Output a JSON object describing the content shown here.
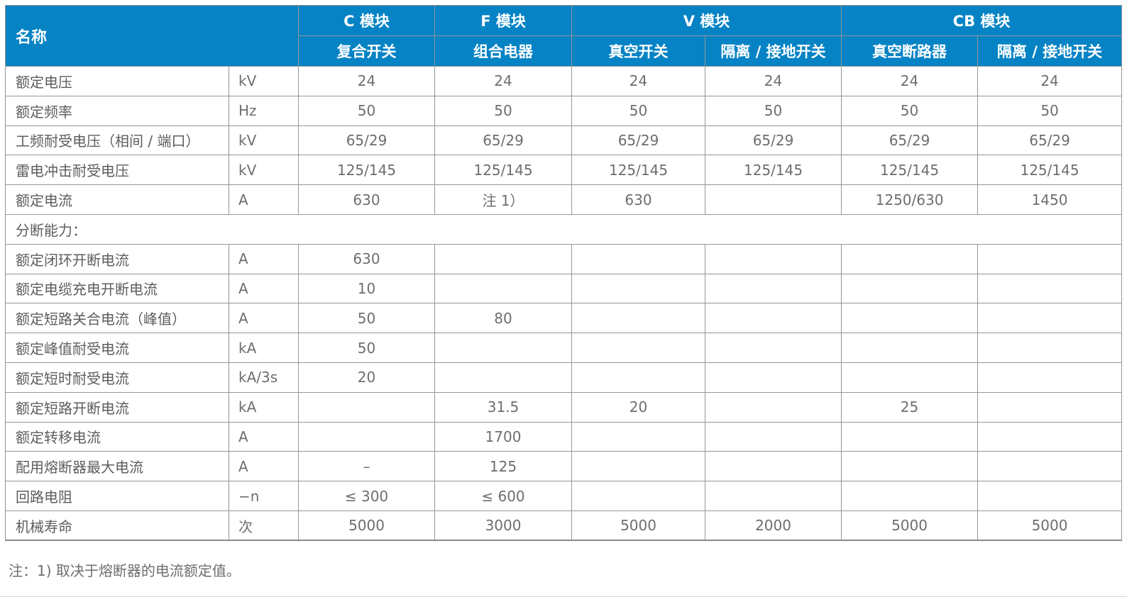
{
  "accent": {
    "header_bg": "#0583c5",
    "header_text": "#ffffff",
    "grid_line": "#969696",
    "body_text": "#6e6e6e"
  },
  "table": {
    "name_header": "名称",
    "groups": [
      {
        "label": "C 模块",
        "subs": [
          "复合开关"
        ]
      },
      {
        "label": "F 模块",
        "subs": [
          "组合电器"
        ]
      },
      {
        "label": "V 模块",
        "subs": [
          "真空开关",
          "隔离 / 接地开关"
        ]
      },
      {
        "label": "CB 模块",
        "subs": [
          "真空断路器",
          "隔离 / 接地开关"
        ]
      }
    ],
    "rows": [
      {
        "type": "data",
        "name": "额定电压",
        "unit": "kV",
        "values": [
          "24",
          "24",
          "24",
          "24",
          "24",
          "24"
        ]
      },
      {
        "type": "data",
        "name": "额定频率",
        "unit": "Hz",
        "values": [
          "50",
          "50",
          "50",
          "50",
          "50",
          "50"
        ]
      },
      {
        "type": "data",
        "name": "工频耐受电压（相间 / 端口）",
        "unit": "kV",
        "values": [
          "65/29",
          "65/29",
          "65/29",
          "65/29",
          "65/29",
          "65/29"
        ]
      },
      {
        "type": "data",
        "name": "雷电冲击耐受电压",
        "unit": "kV",
        "values": [
          "125/145",
          "125/145",
          "125/145",
          "125/145",
          "125/145",
          "125/145"
        ]
      },
      {
        "type": "data",
        "name": "额定电流",
        "unit": "A",
        "values": [
          "630",
          "注 1）",
          "630",
          "",
          "1250/630",
          "1450"
        ]
      },
      {
        "type": "section",
        "name": "分断能力："
      },
      {
        "type": "data",
        "name": "额定闭环开断电流",
        "unit": "A",
        "values": [
          "630",
          "",
          "",
          "",
          "",
          ""
        ]
      },
      {
        "type": "data",
        "name": "额定电缆充电开断电流",
        "unit": "A",
        "values": [
          "10",
          "",
          "",
          "",
          "",
          ""
        ]
      },
      {
        "type": "data",
        "name": "额定短路关合电流（峰值）",
        "unit": "A",
        "values": [
          "50",
          "80",
          "",
          "",
          "",
          ""
        ]
      },
      {
        "type": "data",
        "name": "额定峰值耐受电流",
        "unit": "kA",
        "values": [
          "50",
          "",
          "",
          "",
          "",
          ""
        ]
      },
      {
        "type": "data",
        "name": "额定短时耐受电流",
        "unit": "kA/3s",
        "values": [
          "20",
          "",
          "",
          "",
          "",
          ""
        ]
      },
      {
        "type": "data",
        "name": "额定短路开断电流",
        "unit": "kA",
        "values": [
          "",
          "31.5",
          "20",
          "",
          "25",
          ""
        ]
      },
      {
        "type": "data",
        "name": "额定转移电流",
        "unit": "A",
        "values": [
          "",
          "1700",
          "",
          "",
          "",
          ""
        ]
      },
      {
        "type": "data",
        "name": "配用熔断器最大电流",
        "unit": "A",
        "values": [
          "–",
          "125",
          "",
          "",
          "",
          ""
        ]
      },
      {
        "type": "data",
        "name": "回路电阻",
        "unit": "−n",
        "values": [
          "≤ 300",
          "≤ 600",
          "",
          "",
          "",
          ""
        ]
      },
      {
        "type": "data",
        "name": "机械寿命",
        "unit": "次",
        "values": [
          "5000",
          "3000",
          "5000",
          "2000",
          "5000",
          "5000"
        ]
      }
    ],
    "footnote": "注：1) 取决于熔断器的电流额定值。"
  }
}
